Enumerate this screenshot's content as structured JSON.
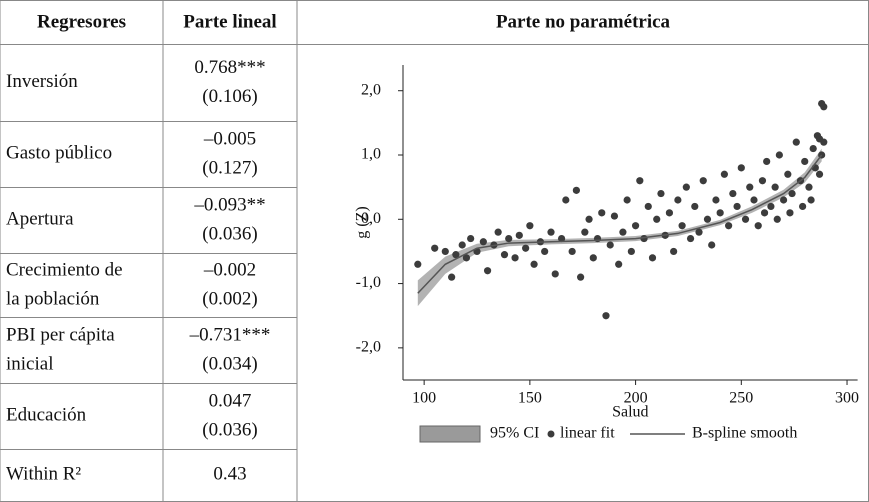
{
  "table": {
    "headers": [
      "Regresores",
      "Parte lineal",
      "Parte no paramétrica"
    ],
    "rows": [
      {
        "label": [
          "Inversión"
        ],
        "values": [
          "0.768***",
          "(0.106)"
        ]
      },
      {
        "label": [
          "Gasto público"
        ],
        "values": [
          "–0.005",
          "(0.127)"
        ]
      },
      {
        "label": [
          "Apertura"
        ],
        "values": [
          "–0.093**",
          "(0.036)"
        ]
      },
      {
        "label": [
          "Crecimiento de",
          "la población"
        ],
        "values": [
          "–0.002",
          "(0.002)"
        ]
      },
      {
        "label": [
          "PBI per cápita",
          "inicial"
        ],
        "values": [
          "–0.731***",
          "(0.034)"
        ]
      },
      {
        "label": [
          "Educación"
        ],
        "values": [
          "0.047",
          "(0.036)"
        ]
      },
      {
        "label": [
          "Within R²"
        ],
        "values": [
          "0.43"
        ]
      }
    ]
  },
  "chart_data": {
    "type": "scatter",
    "ylabel": "g (Z)",
    "xlabel": "Salud",
    "xlim": [
      90,
      305
    ],
    "ylim": [
      -2.5,
      2.4
    ],
    "xticks": [
      100,
      150,
      200,
      250,
      300
    ],
    "yticks": [
      {
        "value": 2,
        "label": "2,0"
      },
      {
        "value": 1,
        "label": "1,0"
      },
      {
        "value": 0,
        "label": "0,0"
      },
      {
        "value": -1,
        "label": "-1,0"
      },
      {
        "value": -2,
        "label": "-2,0"
      }
    ],
    "point_name": "linear fit",
    "point_color": "#3c3c3c",
    "x": [
      97,
      105,
      110,
      113,
      115,
      118,
      120,
      122,
      125,
      128,
      130,
      133,
      135,
      138,
      140,
      143,
      145,
      148,
      150,
      152,
      155,
      157,
      160,
      162,
      165,
      167,
      170,
      172,
      174,
      176,
      178,
      180,
      182,
      184,
      186,
      188,
      190,
      192,
      194,
      196,
      198,
      200,
      202,
      204,
      206,
      208,
      210,
      212,
      214,
      216,
      218,
      220,
      222,
      224,
      226,
      228,
      230,
      232,
      234,
      236,
      238,
      240,
      242,
      244,
      246,
      248,
      250,
      252,
      254,
      256,
      258,
      260,
      262,
      264,
      266,
      268,
      270,
      272,
      274,
      276,
      278,
      280,
      282,
      284,
      285,
      286,
      287,
      288,
      288,
      289,
      289,
      287,
      283,
      279,
      273,
      267,
      261
    ],
    "y": [
      -0.7,
      -0.45,
      -0.5,
      -0.9,
      -0.55,
      -0.4,
      -0.6,
      -0.3,
      -0.5,
      -0.35,
      -0.8,
      -0.4,
      -0.2,
      -0.55,
      -0.3,
      -0.6,
      -0.25,
      -0.45,
      -0.1,
      -0.7,
      -0.35,
      -0.5,
      -0.2,
      -0.85,
      -0.3,
      0.3,
      -0.5,
      0.45,
      -0.9,
      -0.2,
      0.0,
      -0.6,
      -0.3,
      0.1,
      -1.5,
      -0.4,
      0.05,
      -0.7,
      -0.2,
      0.3,
      -0.5,
      -0.1,
      0.6,
      -0.3,
      0.2,
      -0.6,
      0.0,
      0.4,
      -0.25,
      0.1,
      -0.5,
      0.3,
      -0.1,
      0.5,
      -0.3,
      0.2,
      -0.2,
      0.6,
      0.0,
      -0.4,
      0.3,
      0.1,
      0.7,
      -0.1,
      0.4,
      0.2,
      0.8,
      0.0,
      0.5,
      0.3,
      -0.1,
      0.6,
      0.9,
      0.2,
      0.5,
      1.0,
      0.3,
      0.7,
      0.4,
      1.2,
      0.6,
      0.9,
      0.5,
      1.1,
      0.8,
      1.3,
      0.7,
      1.0,
      1.8,
      1.75,
      1.2,
      1.25,
      0.3,
      0.2,
      0.1,
      0.0,
      0.1
    ],
    "smooth": {
      "name": "B-spline smooth",
      "color": "#555555",
      "x": [
        97,
        110,
        125,
        140,
        160,
        180,
        200,
        220,
        240,
        255,
        270,
        280,
        288
      ],
      "y": [
        -1.15,
        -0.7,
        -0.45,
        -0.37,
        -0.35,
        -0.33,
        -0.3,
        -0.22,
        -0.05,
        0.15,
        0.4,
        0.65,
        1.0
      ]
    },
    "ci": {
      "name": "95% CI",
      "color": "#9a9a9a",
      "x": [
        97,
        110,
        125,
        140,
        160,
        180,
        200,
        220,
        240,
        255,
        270,
        280,
        288
      ],
      "lower": [
        -1.35,
        -0.85,
        -0.52,
        -0.42,
        -0.39,
        -0.37,
        -0.34,
        -0.26,
        -0.09,
        0.1,
        0.34,
        0.57,
        0.9
      ],
      "upper": [
        -0.95,
        -0.58,
        -0.38,
        -0.32,
        -0.31,
        -0.29,
        -0.26,
        -0.18,
        -0.01,
        0.2,
        0.46,
        0.73,
        1.1
      ]
    }
  }
}
